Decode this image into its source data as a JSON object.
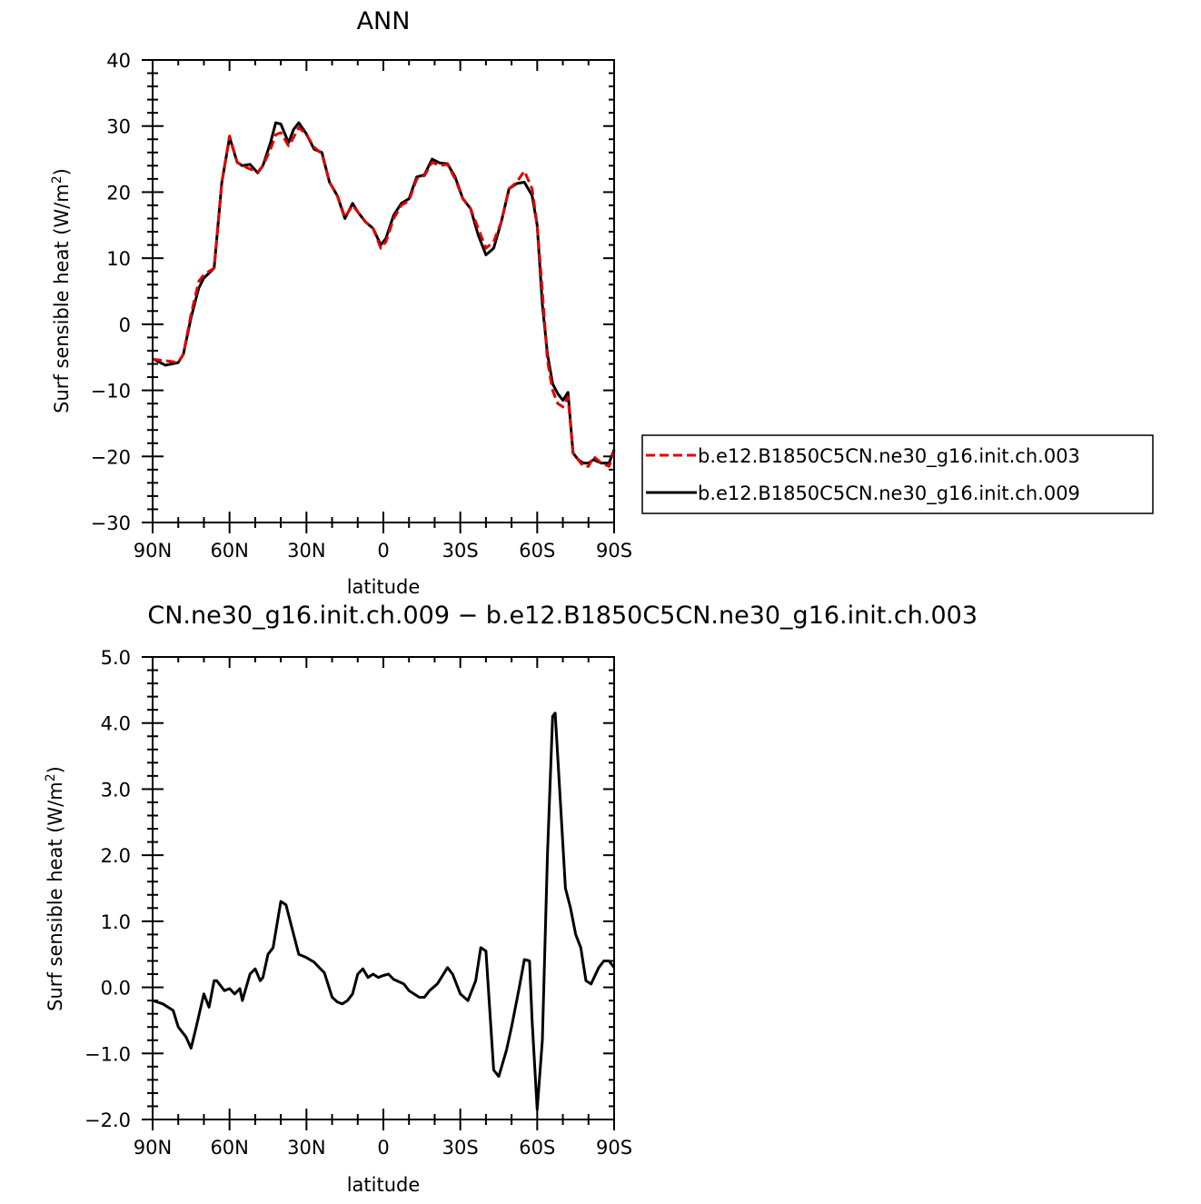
{
  "chart_data": [
    {
      "type": "line",
      "title": "ANN",
      "xlabel": "latitude",
      "ylabel": "Surf sensible heat (W/m²)",
      "ylabel_text": "Surf sensible heat (W/m",
      "ylabel_sup": "2",
      "ylabel_close": ")",
      "xlim": [
        90,
        -90
      ],
      "ylim": [
        -30,
        40
      ],
      "xticks": [
        90,
        60,
        30,
        0,
        -30,
        -60,
        -90
      ],
      "xtick_labels": [
        "90N",
        "60N",
        "30N",
        "0",
        "30S",
        "60S",
        "90S"
      ],
      "yticks": [
        -30,
        -20,
        -10,
        0,
        10,
        20,
        30,
        40
      ],
      "ytick_labels": [
        "−30",
        "−20",
        "−10",
        "0",
        "10",
        "20",
        "30",
        "40"
      ],
      "grid": false,
      "legend_position": "right",
      "x": [
        90,
        85,
        80,
        78,
        75,
        72,
        70,
        66,
        63,
        60,
        57,
        55,
        52,
        49,
        47,
        44,
        42,
        40,
        37,
        35,
        33,
        30,
        27,
        24,
        21,
        18,
        15,
        12,
        10,
        7,
        4,
        1,
        -1,
        -4,
        -7,
        -10,
        -13,
        -16,
        -19,
        -22,
        -25,
        -28,
        -31,
        -34,
        -37,
        -40,
        -43,
        -46,
        -49,
        -52,
        -55,
        -58,
        -60,
        -62,
        -64,
        -66,
        -68,
        -70,
        -72,
        -74,
        -76,
        -78,
        -80,
        -82,
        -85,
        -88,
        -90
      ],
      "series": [
        {
          "name": "b.e12.B1850C5CN.ne30_g16.init.ch.003",
          "color": "#e00000",
          "dash": true,
          "values": [
            -5.3,
            -5.5,
            -5.8,
            -4.5,
            1.5,
            6.5,
            7.5,
            8.5,
            21.5,
            28.5,
            24.5,
            24,
            23.5,
            23,
            24,
            26.5,
            28.7,
            29,
            27,
            28.3,
            29.8,
            28.7,
            26.8,
            25.8,
            21.5,
            19.5,
            16.2,
            18,
            17,
            15.5,
            14.5,
            11.5,
            12.5,
            16,
            18,
            18.7,
            22,
            22.5,
            24.5,
            24,
            24.2,
            22,
            19,
            17.5,
            14.5,
            11.5,
            12.5,
            15.5,
            20.5,
            21.5,
            23.2,
            20.5,
            15,
            5,
            -5.5,
            -10,
            -12,
            -12.5,
            -11,
            -19.5,
            -20.5,
            -21.5,
            -21.5,
            -20,
            -21,
            -21.5,
            -19.2
          ]
        },
        {
          "name": "b.e12.B1850C5CN.ne30_g16.init.ch.009",
          "color": "#000000",
          "dash": false,
          "values": [
            -5.2,
            -6.2,
            -5.8,
            -4.5,
            1.0,
            5.5,
            7.0,
            8.5,
            21.5,
            28.3,
            24.5,
            24,
            24.2,
            22.9,
            24,
            27.5,
            30.5,
            30.3,
            27.5,
            29.5,
            30.5,
            28.8,
            26.5,
            26,
            21.5,
            19.5,
            16,
            18.3,
            17,
            15.5,
            14.5,
            12.0,
            13,
            16.5,
            18.3,
            19,
            22.3,
            22.6,
            25,
            24.4,
            24.3,
            22.3,
            19,
            17.5,
            13.5,
            10.5,
            11.5,
            15.5,
            20.5,
            21.3,
            21.5,
            19.5,
            15,
            3,
            -4.5,
            -9,
            -10.5,
            -11.5,
            -10.3,
            -19.5,
            -20.5,
            -21,
            -21,
            -20.5,
            -21,
            -21,
            -19
          ]
        }
      ]
    },
    {
      "type": "line",
      "title": "CN.ne30_g16.init.ch.009 − b.e12.B1850C5CN.ne30_g16.init.ch.003",
      "xlabel": "latitude",
      "ylabel": "Surf sensible heat (W/m²)",
      "ylabel_text": "Surf sensible heat (W/m",
      "ylabel_sup": "2",
      "ylabel_close": ")",
      "xlim": [
        90,
        -90
      ],
      "ylim": [
        -2.0,
        5.0
      ],
      "xticks": [
        90,
        60,
        30,
        0,
        -30,
        -60,
        -90
      ],
      "xtick_labels": [
        "90N",
        "60N",
        "30N",
        "0",
        "30S",
        "60S",
        "90S"
      ],
      "yticks": [
        -2,
        -1,
        0,
        1,
        2,
        3,
        4,
        5
      ],
      "ytick_labels": [
        "−2.0",
        "−1.0",
        "0.0",
        "1.0",
        "2.0",
        "3.0",
        "4.0",
        "5.0"
      ],
      "grid": false,
      "x": [
        90,
        86,
        82,
        80,
        77,
        75,
        73,
        70,
        68,
        66,
        65,
        62,
        60,
        58,
        56,
        55,
        52,
        50,
        48,
        47,
        45,
        43,
        40,
        38,
        35,
        33,
        30,
        27,
        25,
        23,
        20,
        18,
        16,
        14,
        12,
        10,
        8,
        6,
        4,
        2,
        0,
        -2,
        -4,
        -8,
        -10,
        -14,
        -16,
        -18,
        -21,
        -25,
        -27,
        -30,
        -33,
        -36,
        -38,
        -40,
        -43,
        -45,
        -48,
        -50,
        -53,
        -55,
        -57,
        -58,
        -60,
        -62,
        -64,
        -66,
        -67,
        -68,
        -71,
        -73,
        -75,
        -77,
        -79,
        -81,
        -84,
        -86,
        -88,
        -90
      ],
      "series": [
        {
          "name": "",
          "color": "#000000",
          "dash": false,
          "values": [
            -0.2,
            -0.25,
            -0.35,
            -0.6,
            -0.75,
            -0.92,
            -0.6,
            -0.1,
            -0.3,
            0.1,
            0.1,
            -0.05,
            -0.02,
            -0.1,
            -0.02,
            -0.2,
            0.2,
            0.28,
            0.1,
            0.15,
            0.5,
            0.6,
            1.3,
            1.25,
            0.8,
            0.5,
            0.45,
            0.38,
            0.3,
            0.22,
            -0.15,
            -0.22,
            -0.25,
            -0.2,
            -0.1,
            0.2,
            0.28,
            0.15,
            0.2,
            0.15,
            0.18,
            0.2,
            0.12,
            0.05,
            -0.05,
            -0.15,
            -0.15,
            -0.05,
            0.05,
            0.3,
            0.2,
            -0.1,
            -0.2,
            0.1,
            0.6,
            0.55,
            -1.25,
            -1.35,
            -0.95,
            -0.6,
            0.0,
            0.42,
            0.4,
            -0.5,
            -1.85,
            -0.8,
            2.0,
            4.1,
            4.15,
            3.5,
            1.5,
            1.2,
            0.8,
            0.6,
            0.1,
            0.05,
            0.3,
            0.4,
            0.4,
            0.3
          ]
        }
      ]
    }
  ]
}
